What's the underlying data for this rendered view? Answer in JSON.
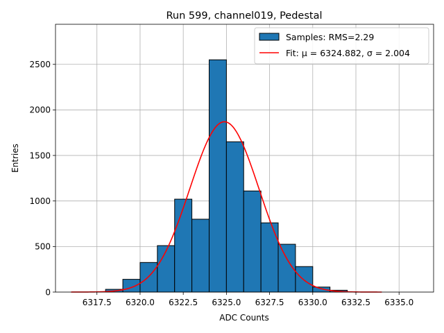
{
  "chart_data": {
    "type": "bar",
    "title": "Run 599, channel019, Pedestal",
    "xlabel": "ADC Counts",
    "ylabel": "Entries",
    "xlim": [
      6315.1,
      6337.0
    ],
    "ylim": [
      0,
      2940
    ],
    "xticks": [
      6317.5,
      6320.0,
      6322.5,
      6325.0,
      6327.5,
      6330.0,
      6332.5,
      6335.0
    ],
    "xtick_labels": [
      "6317.5",
      "6320.0",
      "6322.5",
      "6325.0",
      "6327.5",
      "6330.0",
      "6332.5",
      "6335.0"
    ],
    "yticks": [
      0,
      500,
      1000,
      1500,
      2000,
      2500
    ],
    "ytick_labels": [
      "0",
      "500",
      "1000",
      "1500",
      "2000",
      "2500"
    ],
    "grid": true,
    "legend_position": "top-right",
    "histogram": {
      "name": "Samples: RMS=2.29",
      "color": "#1f77b4",
      "edge_color": "#000000",
      "bin_edges": [
        6318,
        6319,
        6320,
        6321,
        6322,
        6323,
        6324,
        6325,
        6326,
        6327,
        6328,
        6329,
        6330,
        6331,
        6332
      ],
      "counts": [
        30,
        140,
        325,
        510,
        1020,
        800,
        2550,
        1650,
        1110,
        760,
        525,
        280,
        55,
        20
      ]
    },
    "fit": {
      "name": "Fit: μ = 6324.882, σ = 2.004",
      "label_prefix": "Fit: ",
      "mu_text": "μ = 6324.882",
      "sigma_text": "σ = 2.004",
      "color": "#ff0000",
      "mu": 6324.882,
      "sigma": 2.004,
      "amplitude": 1870,
      "x_range": [
        6316.0,
        6334.0
      ]
    }
  }
}
